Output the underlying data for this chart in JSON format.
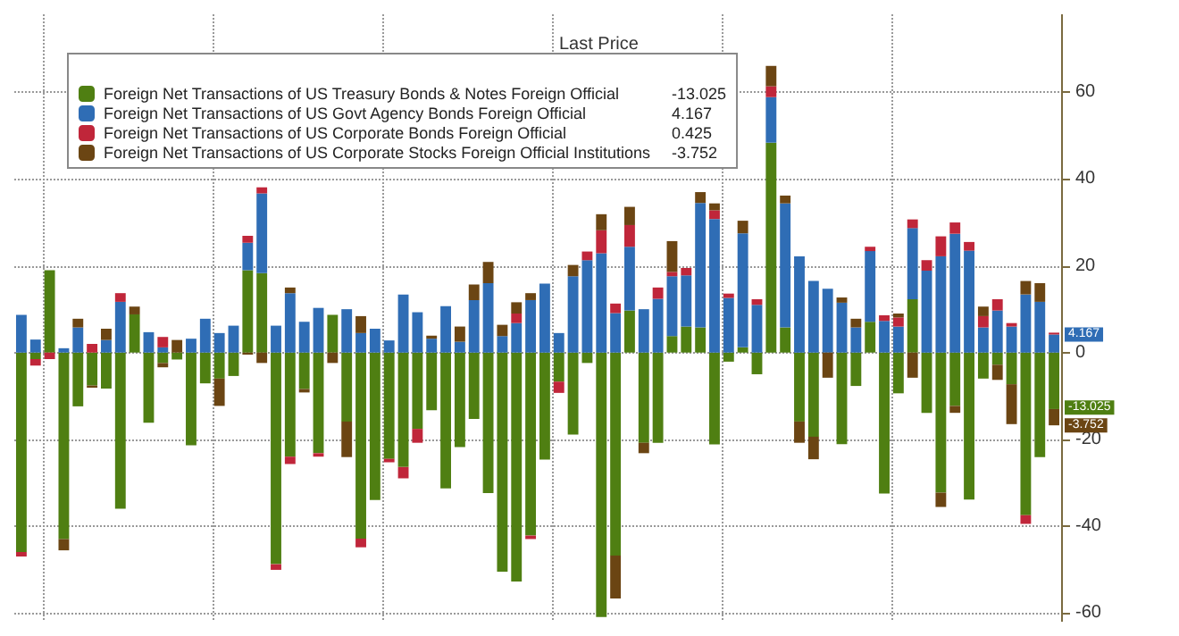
{
  "chart_data": {
    "type": "bar",
    "stacked": true,
    "legend_title": "Last Price",
    "annotations": [
      "-13.025",
      "4.167",
      "0.425",
      "-3.752",
      {
        "text": "4.167",
        "y": 4.167
      },
      "-13.025",
      {
        "text": "-3.752",
        "y": -16.777
      }
    ],
    "legend": "top left",
    "grid": true,
    "tick_labels": "y",
    "categories": [
      null,
      null,
      null,
      null,
      null,
      null,
      null,
      null,
      null,
      null,
      null,
      null,
      null,
      null,
      null,
      null,
      null,
      null,
      null,
      null,
      null,
      null,
      null,
      null,
      null,
      null,
      null,
      null,
      null,
      null,
      null,
      null,
      null,
      null,
      null,
      null,
      null,
      null,
      null,
      null,
      null,
      null,
      null,
      null,
      null,
      null,
      null,
      null,
      null,
      null,
      null,
      null,
      null,
      null,
      null,
      null,
      null,
      null,
      null,
      null,
      null,
      null,
      null,
      null,
      null,
      null,
      null,
      null,
      null,
      null,
      null,
      null,
      null,
      null
    ],
    "ylim": [
      -62,
      78
    ],
    "yticks": [
      -60,
      -40,
      -20,
      0,
      20,
      40,
      60
    ],
    "series": [
      {
        "name": "Foreign Net Transactions of US Treasury Bonds & Notes Foreign Official",
        "color": "#4f7f12",
        "values": [
          -46,
          -1.5,
          19,
          -43,
          -12.4,
          -7.6,
          -8.3,
          -36,
          8.8,
          -16.2,
          -2.4,
          -1.6,
          -21.4,
          -7.1,
          -6,
          -5.4,
          19,
          18.3,
          -48.8,
          -24,
          -8.4,
          -23.2,
          8.7,
          -15.9,
          -42.9,
          -34,
          -24.5,
          -26.4,
          -17.6,
          -13.3,
          -31.3,
          -21.8,
          -15.3,
          -32.4,
          -50.5,
          -52.8,
          -42.2,
          -24.7,
          -6.7,
          -18.9,
          -2.4,
          -61,
          -46.8,
          9.7,
          -20.8,
          -20.8,
          3.8,
          6,
          5.8,
          -21.2,
          -2.1,
          1.2,
          -5,
          48.4,
          5.8,
          -15.9,
          -19.4,
          0,
          -21.1,
          -7.7,
          7.1,
          -32.5,
          -9.4,
          12.3,
          -13.9,
          -32.3,
          -12.3,
          -33.9,
          -6,
          -2.8,
          -7.3,
          -37.5,
          -24.1,
          -13.025
        ]
      },
      {
        "name": "Foreign Net Transactions of US Govt Agency Bonds Foreign Official",
        "color": "#2f6db5",
        "values": [
          8.7,
          3,
          0,
          1,
          5.8,
          0,
          2.9,
          11.7,
          0,
          4.7,
          1.2,
          0,
          3.2,
          7.8,
          4.5,
          6.2,
          6.3,
          18.4,
          6.2,
          13.7,
          7.1,
          10.3,
          0,
          10,
          4.5,
          5.5,
          2.8,
          13.4,
          9.3,
          3.2,
          10.7,
          2.5,
          12.1,
          16,
          3.8,
          6.8,
          12.1,
          15.9,
          4.5,
          17.6,
          21.3,
          22.9,
          9.1,
          14.7,
          10,
          12.4,
          13.8,
          11.8,
          28.7,
          30.8,
          12.6,
          26.3,
          11,
          10.5,
          28.6,
          22.2,
          16.5,
          14.7,
          11.5,
          5.8,
          16.3,
          7.3,
          6,
          16.4,
          18.9,
          22.2,
          27.4,
          23.5,
          5.8,
          9.7,
          6,
          13.4,
          11.7,
          4.167
        ]
      },
      {
        "name": "Foreign Net Transactions of US Corporate Bonds Foreign Official",
        "color": "#c0263a",
        "values": [
          -1,
          -1.5,
          -1.5,
          0,
          0,
          2,
          0,
          2,
          0,
          0,
          2.4,
          0,
          0,
          0,
          0,
          0,
          1.6,
          1.4,
          -1.3,
          -1.7,
          0,
          -0.8,
          0,
          0,
          -2,
          0,
          -0.8,
          -2.6,
          -3.2,
          0,
          0,
          0,
          0,
          0,
          0,
          2.2,
          -0.8,
          0,
          -2.6,
          0,
          2,
          5.3,
          2.2,
          5,
          0,
          2.6,
          1,
          1.7,
          0,
          2,
          1,
          0,
          1.3,
          2.5,
          0,
          0,
          0,
          0,
          0,
          0,
          1,
          1.3,
          2.1,
          2,
          2.4,
          4.6,
          2.6,
          2,
          2.6,
          2.6,
          0.8,
          -2,
          0,
          0.425
        ]
      },
      {
        "name": "Foreign Net Transactions of US Corporate Stocks Foreign Official Institutions",
        "color": "#6b4513",
        "values": [
          0,
          0,
          0,
          -2.6,
          2,
          -0.5,
          2.6,
          0,
          1.8,
          0,
          -1,
          2.9,
          0,
          0,
          -6.3,
          0,
          -0.5,
          -2.4,
          0,
          1.3,
          -0.8,
          0,
          -2.4,
          -8.2,
          3.9,
          0,
          0,
          0,
          0,
          0.7,
          0,
          3.5,
          3.6,
          4.9,
          2.6,
          2.6,
          1.6,
          0,
          0,
          2.6,
          0,
          3.7,
          -9.9,
          4.2,
          -2.4,
          0,
          7.1,
          0,
          2.5,
          1.6,
          0,
          2.9,
          0,
          4.7,
          1.8,
          -4.9,
          -5.2,
          -5.8,
          1.2,
          2,
          0,
          0,
          0.9,
          -5.8,
          0,
          -3.3,
          -1.6,
          0,
          2.2,
          -3.5,
          -9.2,
          3.1,
          4.3,
          -3.752
        ]
      }
    ]
  }
}
